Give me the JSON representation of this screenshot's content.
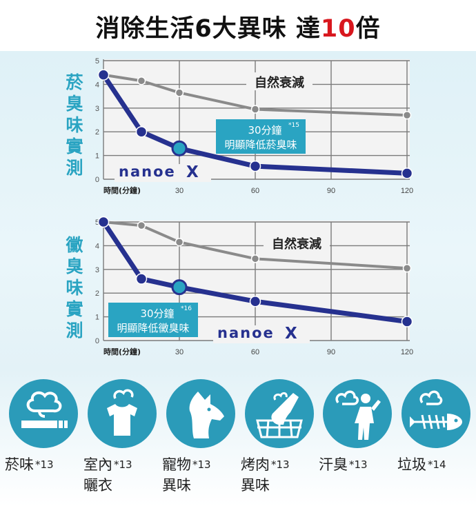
{
  "headline": {
    "text_before": "消除生活6大異味 達",
    "highlight": "10",
    "text_after": "倍",
    "highlight_color": "#d8171e"
  },
  "colors": {
    "nanoe_line": "#26318f",
    "natural_line": "#8a8a8a",
    "callout_bg": "#2aa4c2",
    "icon_circle": "#2b9bb9",
    "label_teal": "#2aa4c2"
  },
  "chart_data": [
    {
      "type": "line",
      "vertical_label": [
        "菸",
        "臭",
        "味",
        "實",
        "測"
      ],
      "xlabel": "時間(分鐘)",
      "x_ticks": [
        30,
        60,
        90,
        120
      ],
      "y_ticks": [
        0,
        1,
        2,
        3,
        4,
        5
      ],
      "xlim": [
        0,
        120
      ],
      "ylim": [
        0,
        5
      ],
      "grid": true,
      "series": [
        {
          "name": "自然衰減",
          "x": [
            0,
            15,
            30,
            60,
            120
          ],
          "y": [
            4.4,
            4.15,
            3.65,
            2.95,
            2.7
          ]
        },
        {
          "name": "nanoe X",
          "x": [
            0,
            15,
            30,
            60,
            120
          ],
          "y": [
            4.4,
            2.0,
            1.3,
            0.55,
            0.25
          ]
        }
      ],
      "callout": {
        "line1": "30分鐘",
        "ref": "*15",
        "line2": "明顯降低菸臭味"
      },
      "brand": "nanoe",
      "brand_x": "X"
    },
    {
      "type": "line",
      "vertical_label": [
        "黴",
        "臭",
        "味",
        "實",
        "測"
      ],
      "xlabel": "時間(分鐘)",
      "x_ticks": [
        30,
        60,
        90,
        120
      ],
      "y_ticks": [
        0,
        1,
        2,
        3,
        4,
        5
      ],
      "xlim": [
        0,
        120
      ],
      "ylim": [
        0,
        5
      ],
      "grid": true,
      "series": [
        {
          "name": "自然衰減",
          "x": [
            0,
            15,
            30,
            60,
            120
          ],
          "y": [
            5.0,
            4.85,
            4.15,
            3.45,
            3.05
          ]
        },
        {
          "name": "nanoe X",
          "x": [
            0,
            15,
            30,
            60,
            120
          ],
          "y": [
            5.0,
            2.6,
            2.25,
            1.65,
            0.8
          ]
        }
      ],
      "callout": {
        "line1": "30分鐘",
        "ref": "*16",
        "line2": "明顯降低黴臭味"
      },
      "brand": "nanoe",
      "brand_x": "X"
    }
  ],
  "odors": [
    {
      "icon": "cigarette-smoke-icon",
      "line1": "菸味",
      "ref": "*13",
      "line2": ""
    },
    {
      "icon": "laundry-shirt-icon",
      "line1": "室內",
      "ref": "*13",
      "line2": "曬衣"
    },
    {
      "icon": "pet-dog-icon",
      "line1": "寵物",
      "ref": "*13",
      "line2": "異味"
    },
    {
      "icon": "grilled-meat-icon",
      "line1": "烤肉",
      "ref": "*13",
      "line2": "異味"
    },
    {
      "icon": "sweaty-person-icon",
      "line1": "汗臭",
      "ref": "*13",
      "line2": ""
    },
    {
      "icon": "fish-bone-garbage-icon",
      "line1": "垃圾",
      "ref": "*14",
      "line2": ""
    }
  ]
}
